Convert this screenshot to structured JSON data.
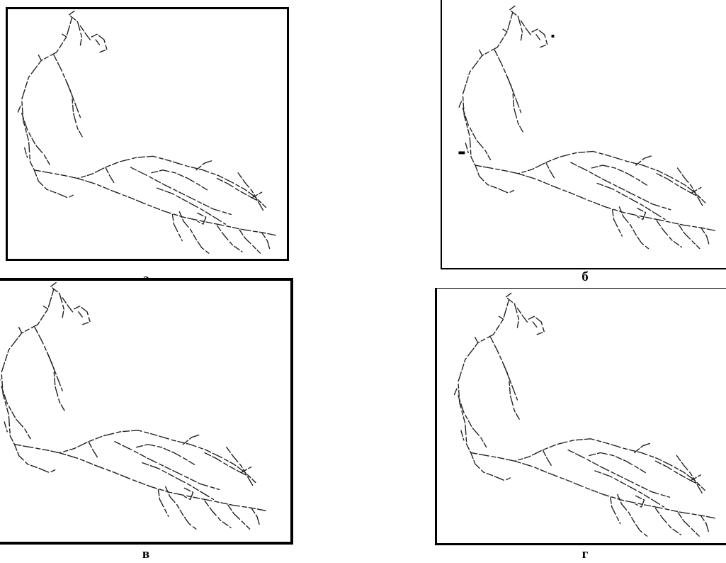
{
  "figure": {
    "panels": [
      {
        "id": "a",
        "caption": "а"
      },
      {
        "id": "b",
        "caption": "б"
      },
      {
        "id": "c",
        "caption": "в"
      },
      {
        "id": "d",
        "caption": "г"
      }
    ]
  },
  "colors": {
    "line": "#222222",
    "frame": "#000000",
    "background": "#ffffff"
  }
}
